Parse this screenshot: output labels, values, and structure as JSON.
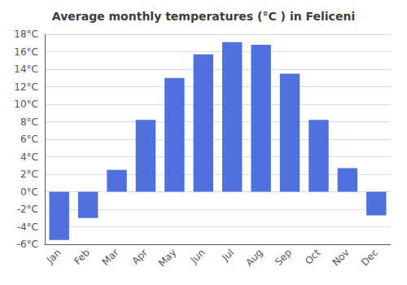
{
  "chart_data": {
    "type": "bar",
    "title": "Average monthly temperatures (°C ) in Feliceni",
    "categories": [
      "Jan",
      "Feb",
      "Mar",
      "Apr",
      "May",
      "Jun",
      "Jul",
      "Aug",
      "Sep",
      "Oct",
      "Nov",
      "Dec"
    ],
    "values": [
      -5.5,
      -3.0,
      2.5,
      8.2,
      13.0,
      15.7,
      17.1,
      16.8,
      13.5,
      8.2,
      2.7,
      -2.7
    ],
    "ylim": [
      -6,
      18
    ],
    "yticks": [
      {
        "value": -6,
        "label": "-6°C"
      },
      {
        "value": -4,
        "label": "-4°C"
      },
      {
        "value": -2,
        "label": "-2°C"
      },
      {
        "value": 0,
        "label": "0°C"
      },
      {
        "value": 2,
        "label": "2°C"
      },
      {
        "value": 4,
        "label": "4°C"
      },
      {
        "value": 6,
        "label": "6°C"
      },
      {
        "value": 8,
        "label": "8°C"
      },
      {
        "value": 10,
        "label": "10°C"
      },
      {
        "value": 12,
        "label": "12°C"
      },
      {
        "value": 14,
        "label": "14°C"
      },
      {
        "value": 16,
        "label": "16°C"
      },
      {
        "value": 18,
        "label": "18°C"
      }
    ],
    "grid": true
  }
}
